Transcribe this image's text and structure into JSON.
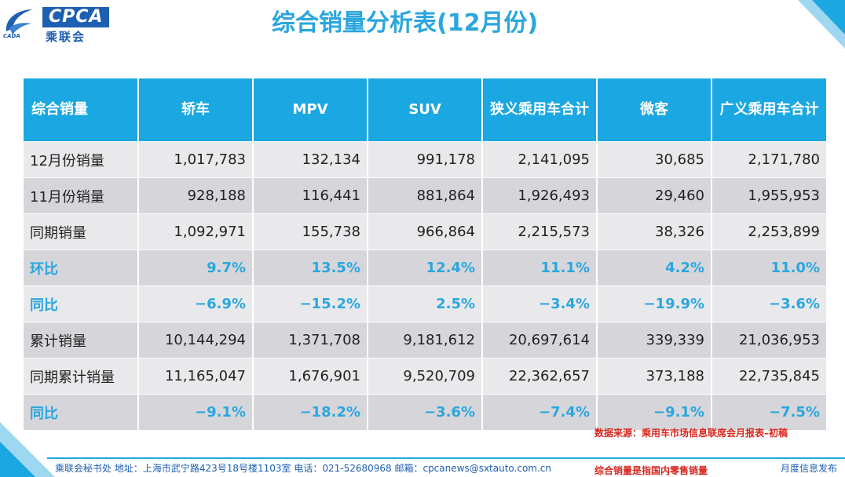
{
  "logo": {
    "en": "CPCA",
    "cn": "乘联会",
    "sub": "CADA"
  },
  "title": "综合销量分析表(12月份)",
  "table": {
    "headers": [
      "综合销量",
      "轿车",
      "MPV",
      "SUV",
      "狭义乘用车合计",
      "微客",
      "广义乘用车合计"
    ],
    "rows": [
      {
        "label": "12月份销量",
        "values": [
          "1,017,783",
          "132,134",
          "991,178",
          "2,141,095",
          "30,685",
          "2,171,780"
        ]
      },
      {
        "label": "11月份销量",
        "values": [
          "928,188",
          "116,441",
          "881,864",
          "1,926,493",
          "29,460",
          "1,955,953"
        ]
      },
      {
        "label": "同期销量",
        "values": [
          "1,092,971",
          "155,738",
          "966,864",
          "2,215,573",
          "38,326",
          "2,253,899"
        ]
      },
      {
        "label": "环比",
        "values": [
          "9.7%",
          "13.5%",
          "12.4%",
          "11.1%",
          "4.2%",
          "11.0%"
        ]
      },
      {
        "label": "同比",
        "values": [
          "−6.9%",
          "−15.2%",
          "2.5%",
          "−3.4%",
          "−19.9%",
          "−3.6%"
        ]
      },
      {
        "label": "累计销量",
        "values": [
          "10,144,294",
          "1,371,708",
          "9,181,612",
          "20,697,614",
          "339,339",
          "21,036,953"
        ]
      },
      {
        "label": "同期累计销量",
        "values": [
          "11,165,047",
          "1,676,901",
          "9,520,709",
          "22,362,657",
          "373,188",
          "22,735,845"
        ]
      },
      {
        "label": "同比",
        "values": [
          "−9.1%",
          "−18.2%",
          "−3.6%",
          "−7.4%",
          "−9.1%",
          "−7.5%"
        ]
      }
    ]
  },
  "notes": {
    "source": "数据来源：乘用车市场信息联席会月报表–初稿",
    "definition": "综合销量是指国内零售销量"
  },
  "footer": {
    "contact": "乘联会秘书处    地址：上海市武宁路423号18号楼1103室    电话：021-52680968    邮箱：cpcanews@sxtauto.com.cn",
    "monthly": "月度信息发布"
  },
  "colors": {
    "accent": "#1ba7e1",
    "title": "#2aa6de",
    "note": "#d8261e",
    "brand": "#1d5fb0"
  }
}
